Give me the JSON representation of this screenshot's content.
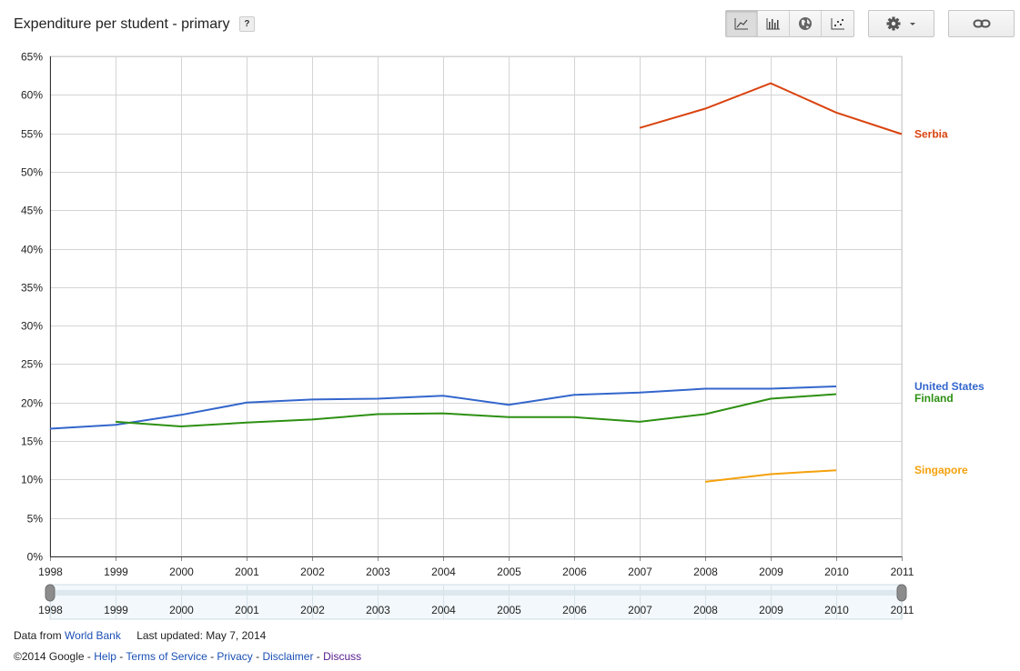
{
  "header": {
    "title": "Expenditure per student - primary",
    "help_label": "?"
  },
  "toolbar": {
    "views": [
      {
        "icon": "line-chart-icon",
        "active": true
      },
      {
        "icon": "bar-chart-icon",
        "active": false
      },
      {
        "icon": "globe-icon",
        "active": false
      },
      {
        "icon": "scatter-chart-icon",
        "active": false
      }
    ],
    "settings_icon": "gear-icon",
    "link_icon": "link-icon"
  },
  "chart_data": {
    "type": "line",
    "title": "Expenditure per student - primary",
    "x": [
      1998,
      1999,
      2000,
      2001,
      2002,
      2003,
      2004,
      2005,
      2006,
      2007,
      2008,
      2009,
      2010,
      2011
    ],
    "x_ticks": [
      "1998",
      "1999",
      "2000",
      "2001",
      "2002",
      "2003",
      "2004",
      "2005",
      "2006",
      "2007",
      "2008",
      "2009",
      "2010",
      "2011"
    ],
    "ylim": [
      0,
      65
    ],
    "y_ticks": [
      "0%",
      "5%",
      "10%",
      "15%",
      "20%",
      "25%",
      "30%",
      "35%",
      "40%",
      "45%",
      "50%",
      "55%",
      "60%",
      "65%"
    ],
    "grid": true,
    "legend": "right",
    "series": [
      {
        "name": "Serbia",
        "color": "#d9430f",
        "values": [
          null,
          null,
          null,
          null,
          null,
          null,
          null,
          null,
          null,
          55.7,
          58.2,
          61.5,
          57.7,
          54.9
        ]
      },
      {
        "name": "United States",
        "color": "#3366cc",
        "values": [
          16.6,
          17.1,
          18.4,
          20.0,
          20.4,
          20.5,
          20.9,
          19.7,
          21.0,
          21.3,
          21.8,
          21.8,
          22.1,
          null
        ]
      },
      {
        "name": "Finland",
        "color": "#2d9012",
        "values": [
          null,
          17.5,
          16.9,
          17.4,
          17.8,
          18.5,
          18.6,
          18.1,
          18.1,
          17.5,
          18.5,
          20.5,
          21.1,
          null
        ]
      },
      {
        "name": "Singapore",
        "color": "#f5a10b",
        "values": [
          null,
          null,
          null,
          null,
          null,
          null,
          null,
          null,
          null,
          null,
          9.7,
          10.7,
          11.2,
          null
        ]
      }
    ],
    "timeline_labels": [
      "1998",
      "1999",
      "2000",
      "2001",
      "2002",
      "2003",
      "2004",
      "2005",
      "2006",
      "2007",
      "2008",
      "2009",
      "2010",
      "2011"
    ]
  },
  "footer": {
    "data_from_label": "Data from",
    "source_link": "World Bank",
    "last_updated": "Last updated: May 7, 2014",
    "copyright": "©2014 Google",
    "sep": " - ",
    "links": [
      "Help",
      "Terms of Service",
      "Privacy",
      "Disclaimer",
      "Discuss"
    ]
  }
}
